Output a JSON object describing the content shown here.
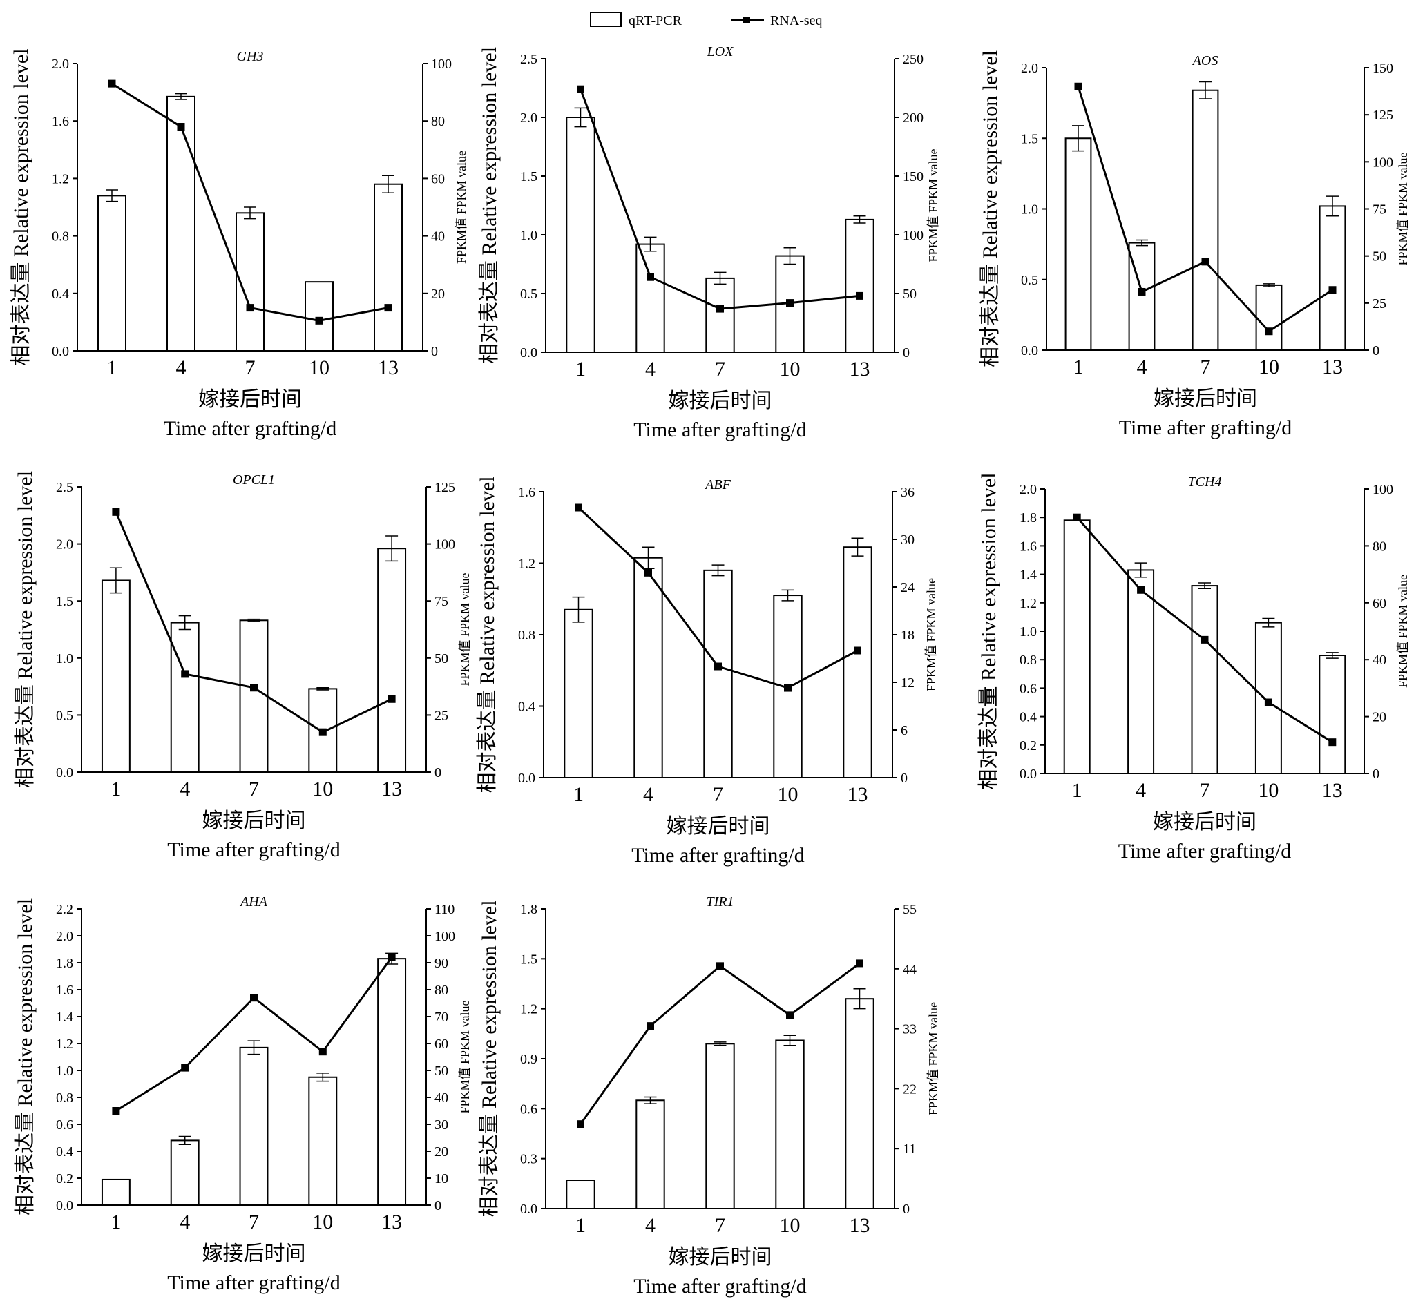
{
  "legend": {
    "bar_label": "qRT-PCR",
    "line_label": "RNA-seq"
  },
  "axis_text": {
    "y_left_cn": "相对表达量",
    "y_left_en": "Relative expression level",
    "y_right_cn": "FPKM值",
    "y_right_en": "FPKM value",
    "x_cn": "嫁接后时间",
    "x_en": "Time after grafting/d"
  },
  "colors": {
    "bar_fill": "#ffffff",
    "stroke": "#000000"
  },
  "chart_data": [
    {
      "type": "bar",
      "title": "GH3",
      "categories": [
        "1",
        "4",
        "7",
        "10",
        "13"
      ],
      "series": [
        {
          "name": "qRT-PCR",
          "values": [
            1.08,
            1.77,
            0.96,
            0.48,
            1.16
          ],
          "errors": [
            0.04,
            0.02,
            0.04,
            0.0,
            0.06
          ]
        },
        {
          "name": "RNA-seq",
          "values": [
            93,
            78,
            15,
            10.5,
            15
          ]
        }
      ],
      "ylim": [
        0,
        2.0
      ],
      "yticks": [
        "0.0",
        "0.4",
        "0.8",
        "1.2",
        "1.6",
        "2.0"
      ],
      "y2lim": [
        0,
        100
      ],
      "y2ticks": [
        "0",
        "20",
        "40",
        "60",
        "80",
        "100"
      ],
      "grid": false,
      "legend": "top-center"
    },
    {
      "type": "bar",
      "title": "LOX",
      "categories": [
        "1",
        "4",
        "7",
        "10",
        "13"
      ],
      "series": [
        {
          "name": "qRT-PCR",
          "values": [
            2.0,
            0.92,
            0.63,
            0.82,
            1.13
          ],
          "errors": [
            0.08,
            0.06,
            0.05,
            0.07,
            0.03
          ]
        },
        {
          "name": "RNA-seq",
          "values": [
            224,
            64,
            37,
            42,
            48
          ]
        }
      ],
      "ylim": [
        0,
        2.5
      ],
      "yticks": [
        "0.0",
        "0.5",
        "1.0",
        "1.5",
        "2.0",
        "2.5"
      ],
      "y2lim": [
        0,
        250
      ],
      "y2ticks": [
        "0",
        "50",
        "100",
        "150",
        "200",
        "250"
      ],
      "grid": false,
      "legend": "top-center"
    },
    {
      "type": "bar",
      "title": "AOS",
      "categories": [
        "1",
        "4",
        "7",
        "10",
        "13"
      ],
      "series": [
        {
          "name": "qRT-PCR",
          "values": [
            1.5,
            0.76,
            1.84,
            0.46,
            1.02
          ],
          "errors": [
            0.09,
            0.02,
            0.06,
            0.01,
            0.07
          ]
        },
        {
          "name": "RNA-seq",
          "values": [
            140,
            31,
            47,
            10,
            32
          ]
        }
      ],
      "ylim": [
        0,
        2.0
      ],
      "yticks": [
        "0.0",
        "0.5",
        "1.0",
        "1.5",
        "2.0"
      ],
      "y2lim": [
        0,
        150
      ],
      "y2ticks": [
        "0",
        "25",
        "50",
        "75",
        "100",
        "125",
        "150"
      ],
      "grid": false,
      "legend": "top-center"
    },
    {
      "type": "bar",
      "title": "OPCL1",
      "categories": [
        "1",
        "4",
        "7",
        "10",
        "13"
      ],
      "series": [
        {
          "name": "qRT-PCR",
          "values": [
            1.68,
            1.31,
            1.33,
            0.73,
            1.96
          ],
          "errors": [
            0.11,
            0.06,
            0.01,
            0.01,
            0.11
          ]
        },
        {
          "name": "RNA-seq",
          "values": [
            114,
            43,
            37,
            17.5,
            32
          ]
        }
      ],
      "ylim": [
        0,
        2.5
      ],
      "yticks": [
        "0.0",
        "0.5",
        "1.0",
        "1.5",
        "2.0",
        "2.5"
      ],
      "y2lim": [
        0,
        125
      ],
      "y2ticks": [
        "0",
        "25",
        "50",
        "75",
        "100",
        "125"
      ],
      "grid": false,
      "legend": "top-center"
    },
    {
      "type": "bar",
      "title": "ABF",
      "categories": [
        "1",
        "4",
        "7",
        "10",
        "13"
      ],
      "series": [
        {
          "name": "qRT-PCR",
          "values": [
            0.94,
            1.23,
            1.16,
            1.02,
            1.29
          ],
          "errors": [
            0.07,
            0.06,
            0.03,
            0.03,
            0.05
          ]
        },
        {
          "name": "RNA-seq",
          "values": [
            34,
            25.8,
            14,
            11.3,
            16
          ]
        }
      ],
      "ylim": [
        0,
        1.6
      ],
      "yticks": [
        "0.0",
        "0.4",
        "0.8",
        "1.2",
        "1.6"
      ],
      "y2lim": [
        0,
        36
      ],
      "y2ticks": [
        "0",
        "6",
        "12",
        "18",
        "24",
        "30",
        "36"
      ],
      "grid": false,
      "legend": "top-center"
    },
    {
      "type": "bar",
      "title": "TCH4",
      "categories": [
        "1",
        "4",
        "7",
        "10",
        "13"
      ],
      "series": [
        {
          "name": "qRT-PCR",
          "values": [
            1.78,
            1.43,
            1.32,
            1.06,
            0.83
          ],
          "errors": [
            0.0,
            0.05,
            0.02,
            0.03,
            0.02
          ]
        },
        {
          "name": "RNA-seq",
          "values": [
            90,
            64.5,
            47,
            25,
            11
          ]
        }
      ],
      "ylim": [
        0,
        2.0
      ],
      "yticks": [
        "0.0",
        "0.2",
        "0.4",
        "0.6",
        "0.8",
        "1.0",
        "1.2",
        "1.4",
        "1.6",
        "1.8",
        "2.0"
      ],
      "y2lim": [
        0,
        100
      ],
      "y2ticks": [
        "0",
        "20",
        "40",
        "60",
        "80",
        "100"
      ],
      "grid": false,
      "legend": "top-center"
    },
    {
      "type": "bar",
      "title": "AHA",
      "categories": [
        "1",
        "4",
        "7",
        "10",
        "13"
      ],
      "series": [
        {
          "name": "qRT-PCR",
          "values": [
            0.19,
            0.48,
            1.17,
            0.95,
            1.83
          ],
          "errors": [
            0.0,
            0.03,
            0.05,
            0.03,
            0.04
          ]
        },
        {
          "name": "RNA-seq",
          "values": [
            35,
            51,
            77,
            57,
            92
          ]
        }
      ],
      "ylim": [
        0,
        2.2
      ],
      "yticks": [
        "0.0",
        "0.2",
        "0.4",
        "0.6",
        "0.8",
        "1.0",
        "1.2",
        "1.4",
        "1.6",
        "1.8",
        "2.0",
        "2.2"
      ],
      "y2lim": [
        0,
        110
      ],
      "y2ticks": [
        "0",
        "10",
        "20",
        "30",
        "40",
        "50",
        "60",
        "70",
        "80",
        "90",
        "100",
        "110"
      ],
      "grid": false,
      "legend": "top-center"
    },
    {
      "type": "bar",
      "title": "TIR1",
      "categories": [
        "1",
        "4",
        "7",
        "10",
        "13"
      ],
      "series": [
        {
          "name": "qRT-PCR",
          "values": [
            0.17,
            0.65,
            0.99,
            1.01,
            1.26
          ],
          "errors": [
            0.0,
            0.02,
            0.01,
            0.03,
            0.06
          ]
        },
        {
          "name": "RNA-seq",
          "values": [
            15.5,
            33.5,
            44.5,
            35.5,
            45
          ]
        }
      ],
      "ylim": [
        0,
        1.8
      ],
      "yticks": [
        "0.0",
        "0.3",
        "0.6",
        "0.9",
        "1.2",
        "1.5",
        "1.8"
      ],
      "y2lim": [
        0,
        55
      ],
      "y2ticks": [
        "0",
        "11",
        "22",
        "33",
        "44",
        "55"
      ],
      "grid": false,
      "legend": "top-center"
    }
  ]
}
